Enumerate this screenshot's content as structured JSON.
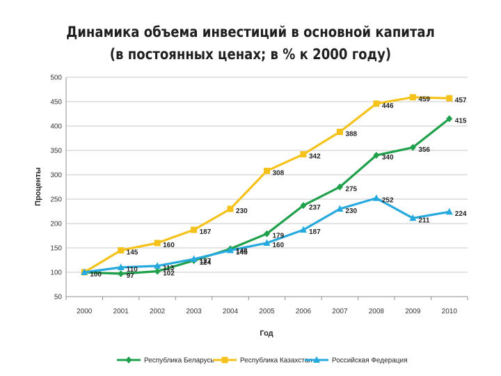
{
  "chart_data": {
    "type": "line",
    "title_line1": "Динамика объема инвестиций в основной капитал",
    "title_line2": "(в постоянных ценах; в % к 2000 году)",
    "xlabel": "Год",
    "ylabel": "Проценты",
    "categories": [
      "2000",
      "2001",
      "2002",
      "2003",
      "2004",
      "2005",
      "2006",
      "2007",
      "2008",
      "2009",
      "2010"
    ],
    "ylim": [
      50,
      500
    ],
    "yticks": [
      50,
      100,
      150,
      200,
      250,
      300,
      350,
      400,
      450,
      500
    ],
    "grid": "horizontal",
    "legend": "bottom",
    "series": [
      {
        "name": "Республика Беларусь",
        "color": "#1fa04a",
        "marker": "diamond",
        "values": [
          100,
          97,
          102,
          124,
          148,
          179,
          237,
          275,
          340,
          356,
          415
        ],
        "labels": [
          "",
          "97",
          "102",
          "124",
          "148",
          "179",
          "237",
          "275",
          "340",
          "356",
          "415"
        ]
      },
      {
        "name": "Республика Казахстан",
        "color": "#f5c21b",
        "marker": "square",
        "values": [
          100,
          145,
          160,
          187,
          230,
          308,
          342,
          388,
          446,
          459,
          457
        ],
        "labels": [
          "",
          "145",
          "160",
          "187",
          "230",
          "308",
          "342",
          "388",
          "446",
          "459",
          "457"
        ]
      },
      {
        "name": "Российская Федерация",
        "color": "#26a9de",
        "marker": "triangle",
        "values": [
          100,
          110,
          113,
          127,
          145,
          160,
          187,
          230,
          252,
          211,
          224
        ],
        "labels": [
          "100",
          "110",
          "113",
          "127",
          "145",
          "160",
          "187",
          "230",
          "252",
          "211",
          "224"
        ]
      }
    ]
  }
}
